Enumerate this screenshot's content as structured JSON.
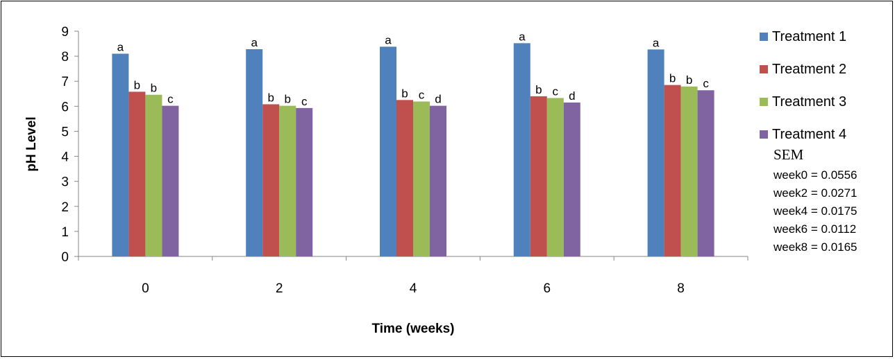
{
  "chart_data": {
    "type": "bar",
    "xlabel": "Time (weeks)",
    "ylabel": "pH Level",
    "ylim": [
      0,
      9
    ],
    "yticks": [
      0,
      1,
      2,
      3,
      4,
      5,
      6,
      7,
      8,
      9
    ],
    "categories": [
      "0",
      "2",
      "4",
      "6",
      "8"
    ],
    "grid": false,
    "legend_position": "right",
    "series": [
      {
        "name": "Treatment 1",
        "color": "#4F81BD",
        "values": [
          8.1,
          8.28,
          8.38,
          8.52,
          8.27
        ],
        "letters": [
          "a",
          "a",
          "a",
          "a",
          "a"
        ]
      },
      {
        "name": "Treatment 2",
        "color": "#C0504D",
        "values": [
          6.58,
          6.08,
          6.25,
          6.4,
          6.85
        ],
        "letters": [
          "b",
          "b",
          "b",
          "b",
          "b"
        ]
      },
      {
        "name": "Treatment 3",
        "color": "#9BBB59",
        "values": [
          6.46,
          6.02,
          6.19,
          6.33,
          6.79
        ],
        "letters": [
          "b",
          "b",
          "c",
          "c",
          "b"
        ]
      },
      {
        "name": "Treatment 4",
        "color": "#8064A2",
        "values": [
          6.02,
          5.93,
          6.02,
          6.15,
          6.64
        ],
        "letters": [
          "c",
          "c",
          "d",
          "d",
          "c"
        ]
      }
    ],
    "sem": {
      "title": "SEM",
      "lines": [
        "week0 = 0.0556",
        "week2 = 0.0271",
        "week4 = 0.0175",
        "week6 = 0.0112",
        "week8 = 0.0165"
      ]
    }
  }
}
